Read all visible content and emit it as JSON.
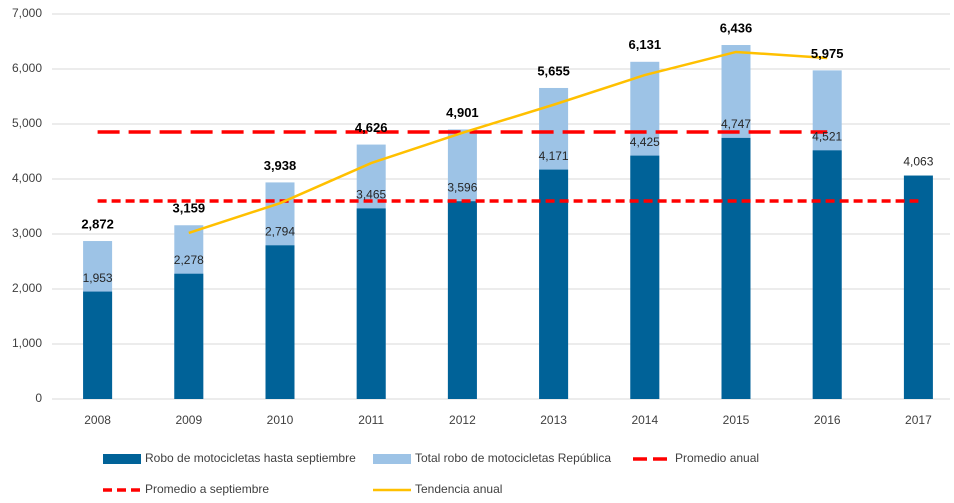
{
  "chart_data": {
    "type": "bar",
    "categories": [
      "2008",
      "2009",
      "2010",
      "2011",
      "2012",
      "2013",
      "2014",
      "2015",
      "2016",
      "2017"
    ],
    "ylim": [
      0,
      7000
    ],
    "yticks": [
      0,
      {
        "value": 1000,
        "label": "1,000"
      },
      {
        "value": 2000,
        "label": "2,000"
      },
      {
        "value": 3000,
        "label": "3,000"
      },
      {
        "value": 4000,
        "label": "4,000"
      },
      {
        "value": 5000,
        "label": "5,000"
      },
      {
        "value": 6000,
        "label": "6,000"
      },
      {
        "value": 7000,
        "label": "7,000"
      }
    ],
    "grid": true,
    "legend": "bottom",
    "series": [
      {
        "name": "Robo de motocicletas hasta septiembre",
        "type": "bar",
        "color": "#006298",
        "values": [
          1953,
          2278,
          2794,
          3465,
          3596,
          4171,
          4425,
          4747,
          4521,
          4063
        ],
        "value_labels": [
          "1,953",
          "2,278",
          "2,794",
          "3,465",
          "3,596",
          "4,171",
          "4,425",
          "4,747",
          "4,521",
          "4,063"
        ]
      },
      {
        "name": "Total robo de motocicletas República",
        "type": "bar",
        "color": "#9dc3e6",
        "values": [
          2872,
          3159,
          3938,
          4626,
          4901,
          5655,
          6131,
          6436,
          5975,
          null
        ],
        "value_labels": [
          "2,872",
          "3,159",
          "3,938",
          "4,626",
          "4,901",
          "5,655",
          "6,131",
          "6,436",
          "5,975",
          null
        ]
      },
      {
        "name": "Promedio anual",
        "type": "line",
        "color": "#ff0000",
        "dash": "long",
        "values": [
          4855,
          4855,
          4855,
          4855,
          4855,
          4855,
          4855,
          4855,
          4855,
          null
        ]
      },
      {
        "name": "Promedio a septiembre",
        "type": "line",
        "color": "#ff0000",
        "dash": "short",
        "values": [
          3601,
          3601,
          3601,
          3601,
          3601,
          3601,
          3601,
          3601,
          3601,
          3601
        ]
      },
      {
        "name": "Tendencia anual",
        "type": "line",
        "color": "#ffc000",
        "dash": "solid",
        "values": [
          null,
          3020,
          3560,
          4290,
          4840,
          5350,
          5890,
          6310,
          6200,
          null
        ]
      }
    ]
  }
}
